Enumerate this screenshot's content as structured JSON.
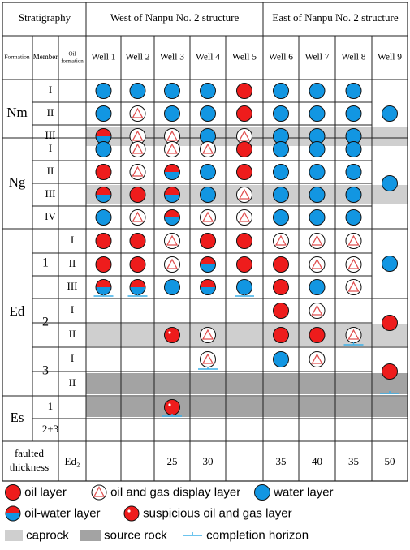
{
  "header": {
    "stratigraphy": "Stratigraphy",
    "west": "West of Nanpu No. 2 structure",
    "east": "East of Nanpu No. 2 structure",
    "col_formation": "Formation",
    "col_member": "Member",
    "col_oil_formation": "Oil formation"
  },
  "wells": [
    "Well 1",
    "Well 2",
    "Well 3",
    "Well 4",
    "Well 5",
    "Well 6",
    "Well 7",
    "Well 8",
    "Well 9"
  ],
  "formations": [
    {
      "name": "Nm",
      "members": [
        {
          "name": "I",
          "rows": [
            0
          ]
        },
        {
          "name": "II",
          "rows": [
            1
          ]
        },
        {
          "name": "III",
          "rows": [
            2
          ]
        }
      ]
    },
    {
      "name": "Ng",
      "members": [
        {
          "name": "I",
          "rows": [
            3
          ]
        },
        {
          "name": "II",
          "rows": [
            4
          ]
        },
        {
          "name": "III",
          "rows": [
            5
          ]
        },
        {
          "name": "IV",
          "rows": [
            6
          ]
        }
      ]
    },
    {
      "name": "Ed",
      "members": [
        {
          "name": "1",
          "rows": [
            7,
            8,
            9
          ],
          "oil": [
            "I",
            "II",
            "III"
          ]
        },
        {
          "name": "2",
          "rows": [
            10,
            11
          ],
          "oil": [
            "I",
            "II"
          ]
        },
        {
          "name": "3",
          "rows": [
            12,
            13
          ],
          "oil": [
            "I",
            "II"
          ]
        }
      ]
    },
    {
      "name": "Es",
      "members": [
        {
          "name": "1",
          "rows": [
            14
          ]
        },
        {
          "name": "2+3",
          "rows": [
            15
          ]
        }
      ]
    }
  ],
  "rows": [
    {
      "band": "",
      "cells": [
        "W",
        "W",
        "W",
        "W",
        "O",
        "W",
        "W",
        "W",
        ""
      ]
    },
    {
      "band": "",
      "cells": [
        "W",
        "D",
        "W",
        "W",
        "O",
        "W",
        "W",
        "W",
        ""
      ]
    },
    {
      "band": "caprock",
      "cells": [
        "OW",
        "D",
        "D",
        "W",
        "D",
        "W",
        "W",
        "W",
        ""
      ]
    },
    {
      "band": "",
      "cells": [
        "W",
        "D",
        "D",
        "D",
        "O",
        "W",
        "W",
        "W",
        ""
      ]
    },
    {
      "band": "",
      "cells": [
        "O",
        "D",
        "OW",
        "W",
        "O",
        "W",
        "W",
        "W",
        ""
      ]
    },
    {
      "band": "caprock",
      "cells": [
        "OW",
        "O",
        "OW",
        "W",
        "D",
        "W",
        "W",
        "W",
        ""
      ]
    },
    {
      "band": "",
      "cells": [
        "W",
        "D",
        "OW",
        "D",
        "D",
        "W",
        "W",
        "W",
        ""
      ]
    },
    {
      "band": "",
      "cells": [
        "O",
        "O",
        "D",
        "O",
        "O",
        "D",
        "D",
        "D",
        ""
      ]
    },
    {
      "band": "",
      "cells": [
        "O",
        "O",
        "D",
        "OW",
        "O",
        "O",
        "D",
        "D",
        ""
      ]
    },
    {
      "band": "",
      "cells": [
        "OW",
        "OW",
        "W",
        "OW",
        "W",
        "O",
        "W",
        "D",
        ""
      ]
    },
    {
      "band": "",
      "cells": [
        "",
        "",
        "",
        "",
        "",
        "O",
        "D",
        "",
        ""
      ]
    },
    {
      "band": "caprock",
      "cells": [
        "",
        "",
        "S",
        "D",
        "",
        "O",
        "O",
        "D",
        ""
      ]
    },
    {
      "band": "",
      "cells": [
        "",
        "",
        "",
        "D",
        "",
        "W",
        "D",
        "",
        ""
      ]
    },
    {
      "band": "source",
      "cells": [
        "",
        "",
        "",
        "",
        "",
        "",
        "",
        "",
        ""
      ]
    },
    {
      "band": "source",
      "cells": [
        "",
        "",
        "S",
        "",
        "",
        "",
        "",
        "",
        ""
      ]
    },
    {
      "band": "",
      "cells": [
        "",
        "",
        "",
        "",
        "",
        "",
        "",
        "",
        ""
      ]
    }
  ],
  "well9_symbols": [
    {
      "type": "W",
      "rows": [
        0,
        2
      ]
    },
    {
      "type": "W",
      "rows": [
        3,
        6
      ]
    },
    {
      "type": "W",
      "rows": [
        7,
        9
      ]
    },
    {
      "type": "O",
      "rows": [
        10,
        11
      ]
    },
    {
      "type": "O",
      "rows": [
        12,
        13
      ]
    }
  ],
  "completion": [
    {
      "well": 0,
      "row": 9
    },
    {
      "well": 1,
      "row": 9
    },
    {
      "well": 3,
      "row": 12
    },
    {
      "well": 4,
      "row": 9
    },
    {
      "well": 7,
      "row": 11
    },
    {
      "well": 2,
      "row": 14
    },
    {
      "well": 8,
      "row": 13
    }
  ],
  "thickness": {
    "label": "faulted thickness",
    "unit": "Ed₂",
    "values": [
      "",
      "",
      "25",
      "30",
      "",
      "35",
      "40",
      "35",
      "50"
    ]
  },
  "legend": {
    "oil": "oil layer",
    "display": "oil and gas display layer",
    "water": "water layer",
    "oilwater": "oil-water layer",
    "suspicious": "suspicious oil and gas layer",
    "caprock": "caprock",
    "source": "source rock",
    "completion": "completion horizon"
  },
  "colors": {
    "oil": "#ee1c1c",
    "water": "#1296e2",
    "caprock": "#cfcfcf",
    "source": "#a3a3a3",
    "completion": "#3cb0e8"
  }
}
